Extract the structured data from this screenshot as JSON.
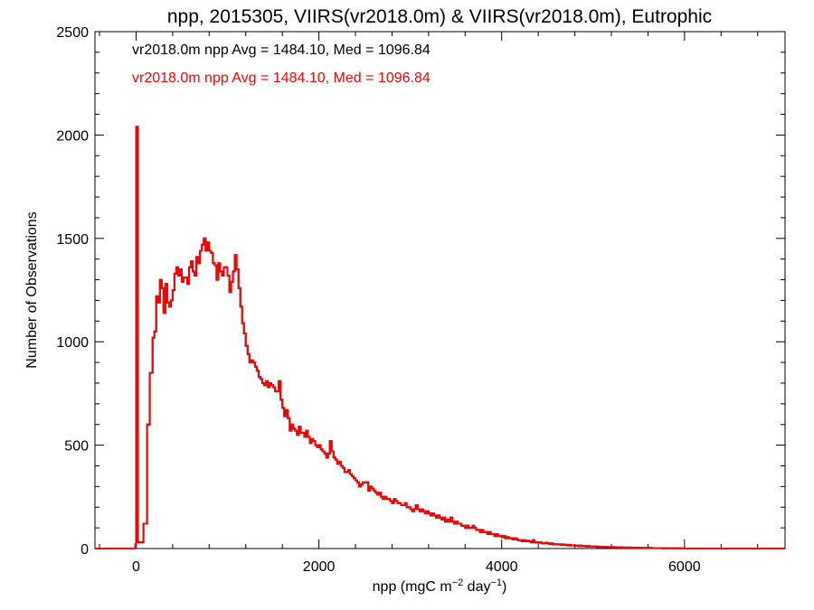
{
  "chart_data": {
    "type": "histogram",
    "title": "npp, 2015305, VIIRS(vr2018.0m) & VIIRS(vr2018.0m), Eutrophic",
    "xlabel": {
      "base": "npp (mgC m",
      "exp1": "−2",
      "mid": " day",
      "exp2": "−1",
      "end": ")"
    },
    "ylabel": "Number of Observations",
    "xlim": [
      -450,
      7100
    ],
    "ylim": [
      0,
      2500
    ],
    "xticks": [
      0,
      2000,
      4000,
      6000
    ],
    "xtick_labels": [
      "0",
      "2000",
      "4000",
      "6000"
    ],
    "yticks": [
      0,
      500,
      1000,
      1500,
      2000,
      2500
    ],
    "ytick_labels": [
      "0",
      "500",
      "1000",
      "1500",
      "2000",
      "2500"
    ],
    "annotations": [
      {
        "text": "vr2018.0m npp Avg = 1484.10, Med = 1096.84",
        "color": "#000000"
      },
      {
        "text": "vr2018.0m npp Avg = 1484.10, Med = 1096.84",
        "color": "#ff0000"
      }
    ],
    "series": [
      {
        "color": "#000000",
        "style": "step",
        "points": [
          [
            -450,
            0
          ],
          [
            -20,
            0
          ],
          [
            -10,
            20
          ],
          [
            0,
            2040
          ],
          [
            20,
            30
          ],
          [
            80,
            120
          ],
          [
            120,
            600
          ],
          [
            150,
            850
          ],
          [
            180,
            1020
          ],
          [
            200,
            1050
          ],
          [
            220,
            1220
          ],
          [
            240,
            1190
          ],
          [
            260,
            1300
          ],
          [
            280,
            1260
          ],
          [
            300,
            1140
          ],
          [
            320,
            1280
          ],
          [
            340,
            1190
          ],
          [
            360,
            1170
          ],
          [
            380,
            1200
          ],
          [
            400,
            1250
          ],
          [
            420,
            1330
          ],
          [
            440,
            1360
          ],
          [
            460,
            1320
          ],
          [
            480,
            1350
          ],
          [
            500,
            1290
          ],
          [
            520,
            1310
          ],
          [
            560,
            1280
          ],
          [
            580,
            1360
          ],
          [
            600,
            1390
          ],
          [
            620,
            1340
          ],
          [
            640,
            1320
          ],
          [
            660,
            1410
          ],
          [
            680,
            1380
          ],
          [
            700,
            1440
          ],
          [
            720,
            1470
          ],
          [
            740,
            1500
          ],
          [
            760,
            1440
          ],
          [
            780,
            1480
          ],
          [
            800,
            1440
          ],
          [
            820,
            1430
          ],
          [
            840,
            1380
          ],
          [
            860,
            1370
          ],
          [
            880,
            1300
          ],
          [
            900,
            1380
          ],
          [
            920,
            1340
          ],
          [
            940,
            1320
          ],
          [
            960,
            1360
          ],
          [
            980,
            1360
          ],
          [
            1000,
            1320
          ],
          [
            1020,
            1240
          ],
          [
            1040,
            1290
          ],
          [
            1060,
            1340
          ],
          [
            1080,
            1420
          ],
          [
            1100,
            1350
          ],
          [
            1120,
            1260
          ],
          [
            1140,
            1170
          ],
          [
            1160,
            1090
          ],
          [
            1180,
            1040
          ],
          [
            1200,
            980
          ],
          [
            1220,
            940
          ],
          [
            1240,
            900
          ],
          [
            1260,
            910
          ],
          [
            1280,
            900
          ],
          [
            1300,
            880
          ],
          [
            1320,
            860
          ],
          [
            1340,
            830
          ],
          [
            1360,
            820
          ],
          [
            1380,
            800
          ],
          [
            1400,
            790
          ],
          [
            1420,
            810
          ],
          [
            1440,
            780
          ],
          [
            1460,
            800
          ],
          [
            1480,
            790
          ],
          [
            1500,
            780
          ],
          [
            1520,
            760
          ],
          [
            1540,
            760
          ],
          [
            1560,
            810
          ],
          [
            1580,
            720
          ],
          [
            1600,
            680
          ],
          [
            1620,
            640
          ],
          [
            1640,
            670
          ],
          [
            1660,
            630
          ],
          [
            1680,
            570
          ],
          [
            1700,
            600
          ],
          [
            1720,
            580
          ],
          [
            1740,
            570
          ],
          [
            1760,
            550
          ],
          [
            1780,
            590
          ],
          [
            1800,
            560
          ],
          [
            1840,
            540
          ],
          [
            1860,
            570
          ],
          [
            1880,
            540
          ],
          [
            1900,
            510
          ],
          [
            1920,
            530
          ],
          [
            1940,
            520
          ],
          [
            1960,
            500
          ],
          [
            1980,
            490
          ],
          [
            2000,
            500
          ],
          [
            2020,
            480
          ],
          [
            2040,
            470
          ],
          [
            2060,
            460
          ],
          [
            2080,
            440
          ],
          [
            2100,
            460
          ],
          [
            2120,
            520
          ],
          [
            2140,
            470
          ],
          [
            2160,
            440
          ],
          [
            2180,
            430
          ],
          [
            2200,
            410
          ],
          [
            2220,
            420
          ],
          [
            2240,
            400
          ],
          [
            2260,
            390
          ],
          [
            2280,
            370
          ],
          [
            2300,
            370
          ],
          [
            2320,
            380
          ],
          [
            2340,
            360
          ],
          [
            2360,
            350
          ],
          [
            2380,
            340
          ],
          [
            2400,
            330
          ],
          [
            2420,
            320
          ],
          [
            2440,
            300
          ],
          [
            2460,
            310
          ],
          [
            2480,
            320
          ],
          [
            2500,
            320
          ],
          [
            2520,
            320
          ],
          [
            2540,
            280
          ],
          [
            2560,
            300
          ],
          [
            2580,
            290
          ],
          [
            2600,
            280
          ],
          [
            2620,
            270
          ],
          [
            2640,
            260
          ],
          [
            2660,
            270
          ],
          [
            2680,
            250
          ],
          [
            2700,
            240
          ],
          [
            2720,
            250
          ],
          [
            2740,
            240
          ],
          [
            2760,
            240
          ],
          [
            2780,
            230
          ],
          [
            2800,
            220
          ],
          [
            2820,
            240
          ],
          [
            2840,
            230
          ],
          [
            2860,
            220
          ],
          [
            2880,
            220
          ],
          [
            2900,
            210
          ],
          [
            2920,
            210
          ],
          [
            2940,
            220
          ],
          [
            2960,
            200
          ],
          [
            2980,
            200
          ],
          [
            3000,
            190
          ],
          [
            3020,
            180
          ],
          [
            3040,
            190
          ],
          [
            3060,
            210
          ],
          [
            3080,
            190
          ],
          [
            3100,
            180
          ],
          [
            3120,
            190
          ],
          [
            3140,
            180
          ],
          [
            3160,
            170
          ],
          [
            3180,
            180
          ],
          [
            3200,
            170
          ],
          [
            3220,
            160
          ],
          [
            3240,
            170
          ],
          [
            3260,
            160
          ],
          [
            3280,
            150
          ],
          [
            3300,
            160
          ],
          [
            3320,
            150
          ],
          [
            3340,
            140
          ],
          [
            3360,
            150
          ],
          [
            3380,
            130
          ],
          [
            3400,
            140
          ],
          [
            3420,
            130
          ],
          [
            3440,
            150
          ],
          [
            3460,
            130
          ],
          [
            3480,
            120
          ],
          [
            3500,
            130
          ],
          [
            3520,
            120
          ],
          [
            3540,
            120
          ],
          [
            3560,
            110
          ],
          [
            3580,
            110
          ],
          [
            3600,
            100
          ],
          [
            3620,
            110
          ],
          [
            3640,
            100
          ],
          [
            3660,
            100
          ],
          [
            3680,
            110
          ],
          [
            3700,
            100
          ],
          [
            3720,
            90
          ],
          [
            3740,
            90
          ],
          [
            3760,
            80
          ],
          [
            3780,
            90
          ],
          [
            3800,
            80
          ],
          [
            3820,
            80
          ],
          [
            3840,
            70
          ],
          [
            3860,
            80
          ],
          [
            3880,
            70
          ],
          [
            3900,
            70
          ],
          [
            3920,
            60
          ],
          [
            3940,
            70
          ],
          [
            3960,
            60
          ],
          [
            3980,
            60
          ],
          [
            4000,
            55
          ],
          [
            4020,
            60
          ],
          [
            4040,
            50
          ],
          [
            4060,
            55
          ],
          [
            4080,
            50
          ],
          [
            4100,
            50
          ],
          [
            4120,
            45
          ],
          [
            4140,
            50
          ],
          [
            4160,
            45
          ],
          [
            4180,
            40
          ],
          [
            4200,
            40
          ],
          [
            4220,
            35
          ],
          [
            4240,
            40
          ],
          [
            4260,
            35
          ],
          [
            4280,
            38
          ],
          [
            4300,
            35
          ],
          [
            4320,
            30
          ],
          [
            4340,
            40
          ],
          [
            4360,
            30
          ],
          [
            4380,
            30
          ],
          [
            4400,
            28
          ],
          [
            4420,
            30
          ],
          [
            4440,
            25
          ],
          [
            4460,
            25
          ],
          [
            4480,
            28
          ],
          [
            4500,
            25
          ],
          [
            4520,
            22
          ],
          [
            4540,
            25
          ],
          [
            4560,
            20
          ],
          [
            4580,
            22
          ],
          [
            4600,
            20
          ],
          [
            4620,
            20
          ],
          [
            4640,
            18
          ],
          [
            4660,
            20
          ],
          [
            4680,
            18
          ],
          [
            4700,
            18
          ],
          [
            4720,
            15
          ],
          [
            4740,
            18
          ],
          [
            4760,
            15
          ],
          [
            4780,
            15
          ],
          [
            4800,
            14
          ],
          [
            4820,
            15
          ],
          [
            4840,
            12
          ],
          [
            4860,
            14
          ],
          [
            4880,
            12
          ],
          [
            4900,
            12
          ],
          [
            4920,
            10
          ],
          [
            4940,
            12
          ],
          [
            4960,
            10
          ],
          [
            4980,
            10
          ],
          [
            5000,
            9
          ],
          [
            5020,
            10
          ],
          [
            5040,
            8
          ],
          [
            5060,
            9
          ],
          [
            5080,
            8
          ],
          [
            5100,
            8
          ],
          [
            5120,
            7
          ],
          [
            5140,
            8
          ],
          [
            5160,
            7
          ],
          [
            5180,
            7
          ],
          [
            5200,
            6
          ],
          [
            5220,
            7
          ],
          [
            5240,
            6
          ],
          [
            5260,
            6
          ],
          [
            5280,
            5
          ],
          [
            5300,
            6
          ],
          [
            5320,
            5
          ],
          [
            5340,
            5
          ],
          [
            5360,
            5
          ],
          [
            5380,
            4
          ],
          [
            5400,
            5
          ],
          [
            5420,
            4
          ],
          [
            5440,
            4
          ],
          [
            5460,
            4
          ],
          [
            5480,
            3
          ],
          [
            5500,
            4
          ],
          [
            5520,
            3
          ],
          [
            5540,
            3
          ],
          [
            5560,
            3
          ],
          [
            5580,
            3
          ],
          [
            5600,
            2
          ],
          [
            5620,
            3
          ],
          [
            5640,
            2
          ],
          [
            5660,
            2
          ],
          [
            5680,
            2
          ],
          [
            5700,
            2
          ],
          [
            5720,
            2
          ],
          [
            5740,
            2
          ],
          [
            5760,
            1
          ],
          [
            5780,
            2
          ],
          [
            5800,
            1
          ],
          [
            5820,
            1
          ],
          [
            5840,
            1
          ],
          [
            5860,
            1
          ],
          [
            5880,
            1
          ],
          [
            5900,
            1
          ],
          [
            5920,
            1
          ],
          [
            5940,
            1
          ],
          [
            5960,
            1
          ],
          [
            5980,
            1
          ],
          [
            6000,
            0
          ],
          [
            7100,
            0
          ]
        ]
      },
      {
        "color": "#ff0000",
        "style": "step",
        "same_as": 0
      }
    ]
  }
}
